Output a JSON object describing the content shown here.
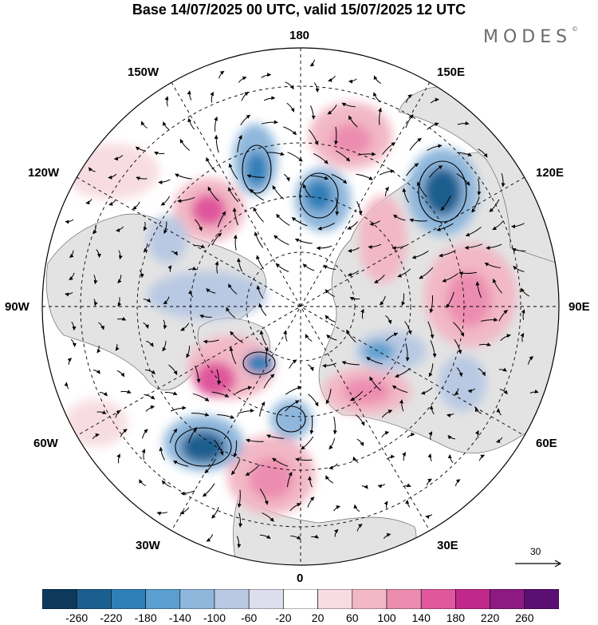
{
  "title": "Base 14/07/2025 00 UTC, valid 15/07/2025 12 UTC",
  "brand": "MODES",
  "brand_mark": "©",
  "longitude_labels": {
    "n180": "180",
    "w150": "150W",
    "e150": "150E",
    "w120": "120W",
    "e120": "120E",
    "w90": "90W",
    "e90": "90E",
    "w60": "60W",
    "e60": "60E",
    "w30": "30W",
    "e30": "30E",
    "s0": "0"
  },
  "vector_scale": {
    "value": "30",
    "icon": "arrow-right-icon"
  },
  "colorbar": {
    "levels": [
      "-260",
      "-220",
      "-180",
      "-140",
      "-100",
      "-60",
      "-20",
      "20",
      "60",
      "100",
      "140",
      "180",
      "220",
      "260"
    ],
    "colors": [
      "#0d3a5c",
      "#1b5f8f",
      "#2f7fb8",
      "#5a9fcf",
      "#8fb7dc",
      "#b9c9e3",
      "#dcdeee",
      "#ffffff",
      "#f7dde1",
      "#f2b8c6",
      "#ec8db0",
      "#e0579c",
      "#c1288c",
      "#8d1a80",
      "#5b0f73"
    ]
  },
  "map": {
    "land_color": "#e6e6e6",
    "ocean_color": "#ffffff",
    "positive_anomalies": [
      {
        "name": "anomaly-positive-north-pacific",
        "color": "#ec8db0"
      },
      {
        "name": "anomaly-positive-east-siberia",
        "color": "#ec8db0"
      },
      {
        "name": "anomaly-positive-alaska",
        "color": "#e0579c"
      },
      {
        "name": "anomaly-positive-central-asia",
        "color": "#ec8db0"
      },
      {
        "name": "anomaly-positive-greenland-south",
        "color": "#e0579c"
      },
      {
        "name": "anomaly-positive-north-atlantic",
        "color": "#ec8db0"
      },
      {
        "name": "anomaly-positive-europe-north",
        "color": "#ec8db0"
      }
    ],
    "negative_anomalies": [
      {
        "name": "anomaly-negative-siberia",
        "color": "#1b5f8f"
      },
      {
        "name": "anomaly-negative-bering",
        "color": "#2f7fb8"
      },
      {
        "name": "anomaly-negative-arctic",
        "color": "#2f7fb8"
      },
      {
        "name": "anomaly-negative-atlantic",
        "color": "#1b5f8f"
      },
      {
        "name": "anomaly-negative-scandinavia",
        "color": "#5a9fcf"
      },
      {
        "name": "anomaly-negative-canada",
        "color": "#8fb7dc"
      },
      {
        "name": "anomaly-negative-ural",
        "color": "#8fb7dc"
      }
    ]
  }
}
